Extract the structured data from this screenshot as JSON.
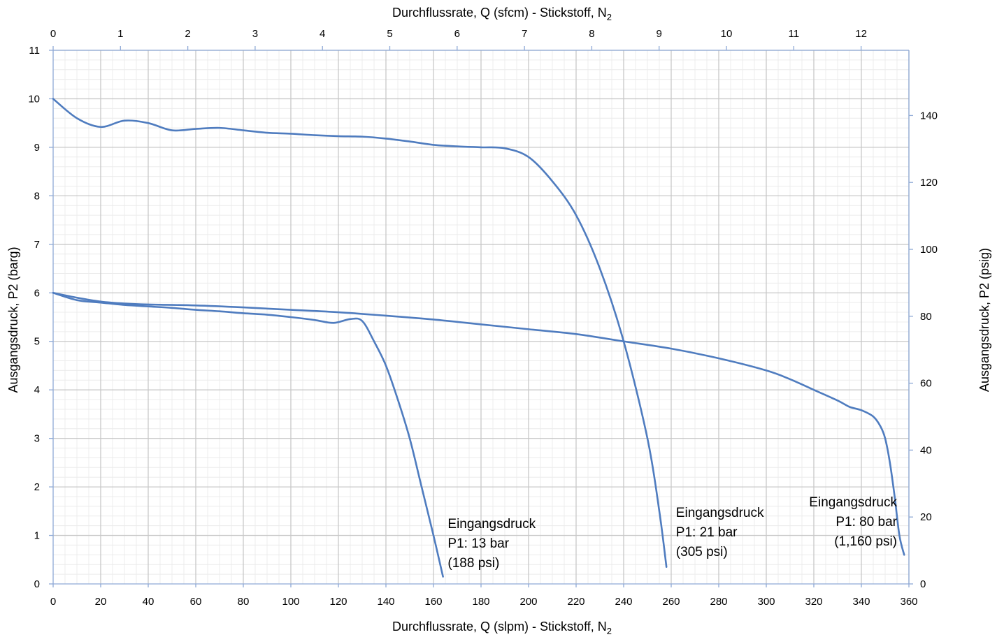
{
  "chart_data": {
    "type": "line",
    "xlabel_bottom": "Durchflussrate, Q (slpm) - Stickstoff, N",
    "xlabel_bottom_sub": "2",
    "xlabel_top": "Durchflussrate, Q (sfcm) - Stickstoff, N",
    "xlabel_top_sub": "2",
    "ylabel_left": "Ausgangsdruck, P2 (barg)",
    "ylabel_right": "Ausgangsdruck, P2 (psig)",
    "xlim": [
      0,
      360
    ],
    "ylim": [
      0,
      11
    ],
    "x2lim": [
      0,
      12.71
    ],
    "y2lim": [
      0,
      159.5
    ],
    "x_ticks": [
      0,
      20,
      40,
      60,
      80,
      100,
      120,
      140,
      160,
      180,
      200,
      220,
      240,
      260,
      280,
      300,
      320,
      340,
      360
    ],
    "x_tick_labels": [
      "0",
      "20",
      "40",
      "60",
      "80",
      "100",
      "120",
      "140",
      "160",
      "180",
      "200",
      "220",
      "240",
      "260",
      "280",
      "300",
      "320",
      "340",
      "360"
    ],
    "y_ticks": [
      0,
      1,
      2,
      3,
      4,
      5,
      6,
      7,
      8,
      9,
      10,
      11
    ],
    "y_tick_labels": [
      "0",
      "1",
      "2",
      "3",
      "4",
      "5",
      "6",
      "7",
      "8",
      "9",
      "10",
      "11"
    ],
    "x2_ticks": [
      0,
      1,
      2,
      3,
      4,
      5,
      6,
      7,
      8,
      9,
      10,
      11,
      12
    ],
    "x2_tick_labels": [
      "0",
      "1",
      "2",
      "3",
      "4",
      "5",
      "6",
      "7",
      "8",
      "9",
      "10",
      "11",
      "12"
    ],
    "y2_ticks": [
      0,
      20,
      40,
      60,
      80,
      100,
      120,
      140
    ],
    "y2_tick_labels": [
      "0",
      "20",
      "40",
      "60",
      "80",
      "100",
      "120",
      "140"
    ],
    "grid": true,
    "line_color": "#4f7cbf",
    "series": [
      {
        "x": [
          0,
          10,
          20,
          30,
          40,
          50,
          60,
          70,
          80,
          90,
          100,
          110,
          118,
          125,
          130,
          135,
          140,
          145,
          150,
          155,
          160,
          164
        ],
        "y": [
          6.0,
          5.85,
          5.8,
          5.75,
          5.72,
          5.69,
          5.65,
          5.62,
          5.58,
          5.55,
          5.5,
          5.44,
          5.38,
          5.46,
          5.42,
          5.0,
          4.5,
          3.8,
          3.0,
          2.0,
          1.0,
          0.15
        ],
        "labels": [
          "Eingangsdruck",
          "P1: 13 bar",
          "(188 psi)"
        ],
        "label_at": [
          166,
          1.15
        ],
        "label_anchor": "start"
      },
      {
        "x": [
          0,
          10,
          20,
          30,
          40,
          50,
          60,
          70,
          80,
          90,
          100,
          110,
          120,
          130,
          140,
          150,
          160,
          170,
          180,
          190,
          200,
          210,
          220,
          230,
          240,
          250,
          255,
          258
        ],
        "y": [
          10.0,
          9.6,
          9.42,
          9.55,
          9.5,
          9.35,
          9.38,
          9.4,
          9.35,
          9.3,
          9.28,
          9.25,
          9.23,
          9.22,
          9.18,
          9.12,
          9.05,
          9.02,
          9.0,
          8.98,
          8.8,
          8.3,
          7.6,
          6.5,
          5.0,
          3.0,
          1.5,
          0.35
        ],
        "labels": [
          "Eingangsdruck",
          "P1: 21 bar",
          "(305 psi)"
        ],
        "label_at": [
          262,
          1.38
        ],
        "label_anchor": "start"
      },
      {
        "x": [
          0,
          10,
          20,
          30,
          40,
          60,
          80,
          100,
          120,
          140,
          160,
          180,
          200,
          220,
          240,
          260,
          280,
          300,
          310,
          320,
          330,
          335,
          340,
          345,
          348,
          350,
          352,
          354,
          356,
          358
        ],
        "y": [
          6.0,
          5.9,
          5.82,
          5.78,
          5.76,
          5.74,
          5.7,
          5.65,
          5.6,
          5.53,
          5.45,
          5.35,
          5.25,
          5.15,
          5.0,
          4.85,
          4.65,
          4.4,
          4.22,
          4.0,
          3.78,
          3.65,
          3.58,
          3.45,
          3.25,
          3.0,
          2.5,
          1.8,
          1.0,
          0.6
        ],
        "labels": [
          "Eingangsdruck",
          "P1: 80 bar",
          "(1,160 psi)"
        ],
        "label_at": [
          355,
          1.6
        ],
        "label_anchor": "end"
      }
    ]
  }
}
